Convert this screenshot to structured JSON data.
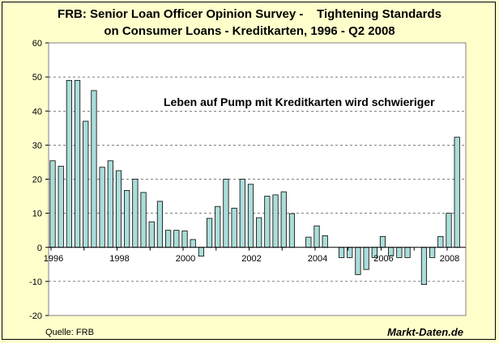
{
  "chart_data": {
    "type": "bar",
    "title": [
      "FRB: Senior Loan Officer Opinion Survey -    Tightening Standards",
      "on Consumer Loans - Kreditkarten, 1996 - Q2 2008"
    ],
    "annotation": "Leben auf Pump mit Kreditkarten wird schwieriger",
    "source": "Quelle: FRB",
    "brand": "Markt-Daten.de",
    "ylim": [
      -20,
      60
    ],
    "yticks": [
      -20,
      -10,
      0,
      10,
      20,
      30,
      40,
      50,
      60
    ],
    "ytick_labels": [
      "-20",
      "-10",
      "0",
      "10",
      "20",
      "30",
      "40",
      "50",
      "60"
    ],
    "xlim": [
      1996,
      2008.75
    ],
    "xticks": [
      1996,
      1998,
      2000,
      2002,
      2004,
      2006,
      2008
    ],
    "xtick_labels": [
      "1996",
      "1998",
      "2000",
      "2002",
      "2004",
      "2006",
      "2008"
    ],
    "grid": "horizontal-dashed",
    "bar_color": "#aaddd9",
    "x": [
      1996.0,
      1996.25,
      1996.5,
      1996.75,
      1997.0,
      1997.25,
      1997.5,
      1997.75,
      1998.0,
      1998.25,
      1998.5,
      1998.75,
      1999.0,
      1999.25,
      1999.5,
      1999.75,
      2000.0,
      2000.25,
      2000.5,
      2000.75,
      2001.0,
      2001.25,
      2001.5,
      2001.75,
      2002.0,
      2002.25,
      2002.5,
      2002.75,
      2003.0,
      2003.25,
      2003.5,
      2003.75,
      2004.0,
      2004.25,
      2004.5,
      2004.75,
      2005.0,
      2005.25,
      2005.5,
      2005.75,
      2006.0,
      2006.25,
      2006.5,
      2006.75,
      2007.0,
      2007.25,
      2007.5,
      2007.75,
      2008.0,
      2008.25
    ],
    "values": [
      25.4,
      23.8,
      49.0,
      49.0,
      37.0,
      46.0,
      23.5,
      25.4,
      22.5,
      16.7,
      20.0,
      16.1,
      7.5,
      13.5,
      5.0,
      5.0,
      4.8,
      2.3,
      -2.6,
      8.5,
      12.0,
      20.0,
      11.5,
      20.0,
      18.5,
      8.7,
      15.0,
      15.4,
      16.3,
      9.9,
      0.0,
      3.0,
      6.3,
      3.4,
      0.0,
      -3.0,
      -3.0,
      -8.0,
      -6.5,
      -3.0,
      3.2,
      -2.5,
      -3.0,
      -3.0,
      0.0,
      -10.9,
      -3.0,
      3.2,
      10.0,
      32.3
    ]
  }
}
